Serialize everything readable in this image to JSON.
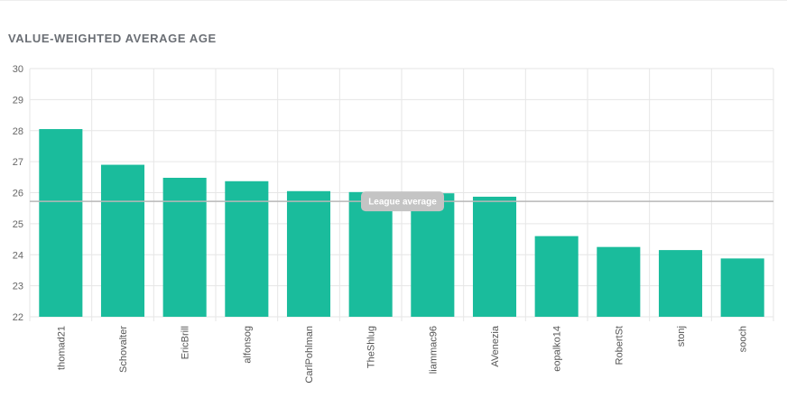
{
  "title": "VALUE-WEIGHTED AVERAGE AGE",
  "colors": {
    "bar": "#1abc9c",
    "grid": "#e6e6e6",
    "reference_line": "#b8b8b8",
    "reference_label_bg": "#c4c4c4"
  },
  "chart_data": {
    "type": "bar",
    "title": "VALUE-WEIGHTED AVERAGE AGE",
    "xlabel": "",
    "ylabel": "",
    "ylim": [
      22,
      30
    ],
    "yticks": [
      22,
      23,
      24,
      25,
      26,
      27,
      28,
      29,
      30
    ],
    "grid": true,
    "categories": [
      "thomad21",
      "Schovalter",
      "EricBrill",
      "alfonsog",
      "CarlPohlman",
      "TheShlug",
      "liammac96",
      "AVenezia",
      "eopalko14",
      "RobertSt",
      "stonj",
      "sooch"
    ],
    "values": [
      28.05,
      26.9,
      26.48,
      26.37,
      26.05,
      26.02,
      25.98,
      25.87,
      24.6,
      24.25,
      24.15,
      23.88
    ],
    "reference_line": {
      "label": "League average",
      "value": 25.72
    }
  }
}
